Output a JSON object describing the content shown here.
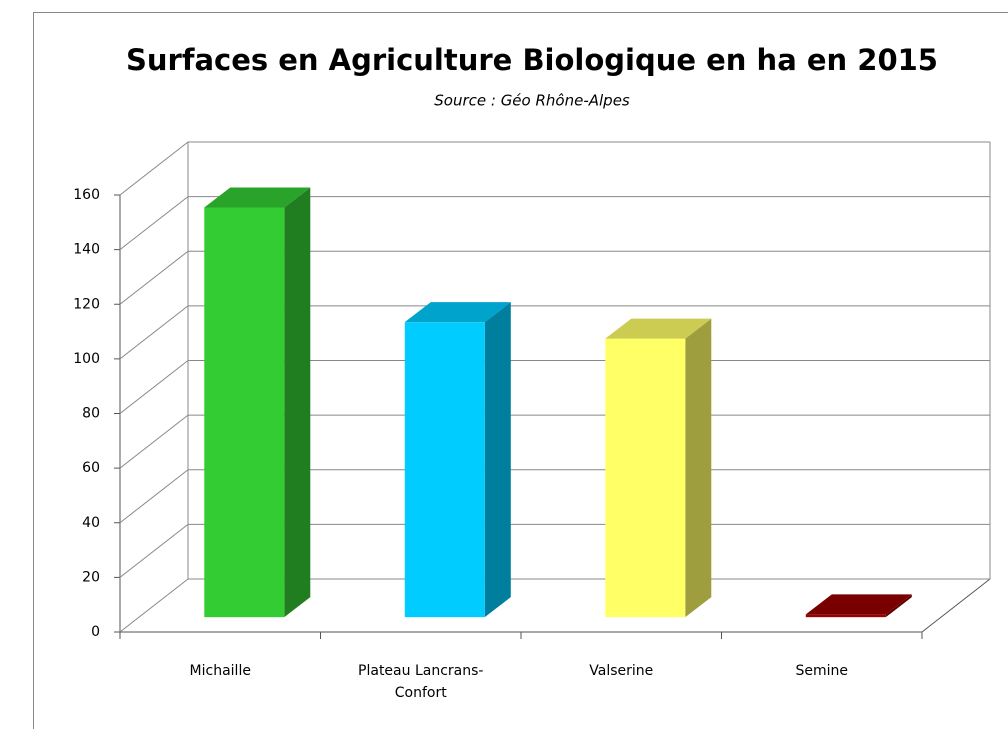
{
  "chart_data": {
    "type": "bar3d",
    "title": "Surfaces en Agriculture Biologique en ha en 2015",
    "subtitle": "Source : Géo Rhône-Alpes",
    "categories": [
      "Michaille",
      "Plateau Lancrans-Confort",
      "Valserine",
      "Semine"
    ],
    "values": [
      150,
      108,
      102,
      1
    ],
    "colors": [
      "#33cc33",
      "#00ccff",
      "#ffff66",
      "#990000"
    ],
    "ylim": [
      0,
      160
    ],
    "yticks": [
      0,
      20,
      40,
      60,
      80,
      100,
      120,
      140,
      160
    ],
    "grid": true
  }
}
